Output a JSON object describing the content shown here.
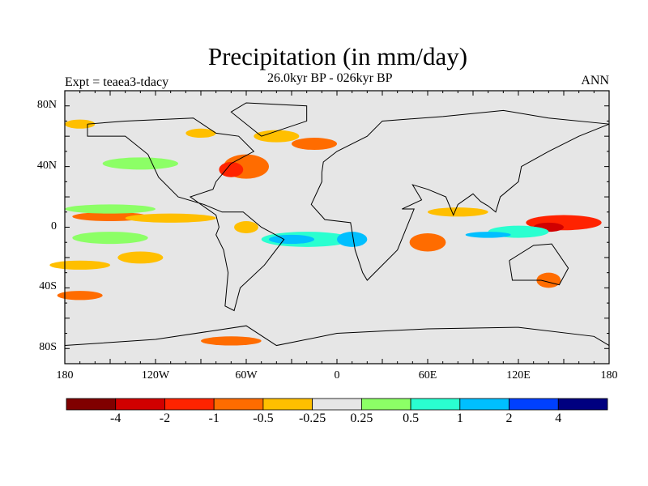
{
  "title": "Precipitation (in mm/day)",
  "subtitle_left": "Expt = teaea3-tdacy",
  "subtitle_center": "26.0kyr BP - 026kyr BP",
  "subtitle_right": "ANN",
  "lat_ticks": [
    {
      "label": "80N",
      "lat": 80
    },
    {
      "label": "40N",
      "lat": 40
    },
    {
      "label": "0",
      "lat": 0
    },
    {
      "label": "40S",
      "lat": -40
    },
    {
      "label": "80S",
      "lat": -80
    }
  ],
  "lon_ticks": [
    {
      "label": "180",
      "lon": -180
    },
    {
      "label": "120W",
      "lon": -120
    },
    {
      "label": "60W",
      "lon": -60
    },
    {
      "label": "0",
      "lon": 0
    },
    {
      "label": "60E",
      "lon": 60
    },
    {
      "label": "120E",
      "lon": 120
    },
    {
      "label": "180",
      "lon": 180
    }
  ],
  "colorbar": {
    "colors": [
      "#800000",
      "#d10000",
      "#ff2300",
      "#ff6c00",
      "#ffbf00",
      "#e6e6e6",
      "#8cff66",
      "#2affd0",
      "#00bfff",
      "#0040ff",
      "#000080"
    ],
    "labels": [
      "-4",
      "-2",
      "-1",
      "-0.5",
      "-0.25",
      "0.25",
      "0.5",
      "1",
      "2",
      "4"
    ]
  },
  "background_color": "#e6e6e6"
}
